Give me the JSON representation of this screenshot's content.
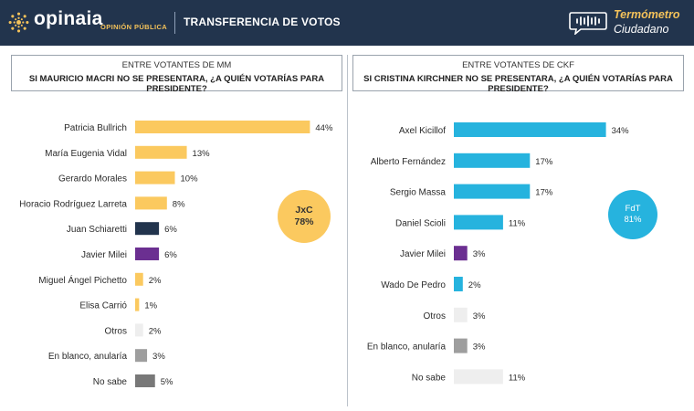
{
  "header": {
    "brand": "opinaia",
    "brand_sub": "OPINIÓN PÚBLICA",
    "title": "TRANSFERENCIA DE VOTOS",
    "product_line1": "Termómetro",
    "product_line2": "Ciudadano"
  },
  "colors": {
    "header_bg": "#22344d",
    "jxc": "#fbc95f",
    "fdt": "#26b3de",
    "schiaretti": "#22344d",
    "milei": "#6b2f91",
    "otros": "#eeeeee",
    "blanco": "#9e9e9e",
    "nosabe": "#787878"
  },
  "chart_data": [
    {
      "type": "bar",
      "orientation": "horizontal",
      "title": "ENTRE VOTANTES DE MM",
      "subtitle": "SI MAURICIO MACRI NO SE PRESENTARA, ¿A QUIÉN VOTARÍAS PARA PRESIDENTE?",
      "categories": [
        "Patricia Bullrich",
        "María Eugenia Vidal",
        "Gerardo Morales",
        "Horacio Rodríguez Larreta",
        "Juan Schiaretti",
        "Javier Milei",
        "Miguel Ángel Pichetto",
        "Elisa Carrió",
        "Otros",
        "En blanco, anularía",
        "No sabe"
      ],
      "values": [
        44,
        13,
        10,
        8,
        6,
        6,
        2,
        1,
        2,
        3,
        5
      ],
      "labels": [
        "44%",
        "13%",
        "10%",
        "8%",
        "6%",
        "6%",
        "2%",
        "1%",
        "2%",
        "3%",
        "5%"
      ],
      "bar_colors": [
        "#fbc95f",
        "#fbc95f",
        "#fbc95f",
        "#fbc95f",
        "#22344d",
        "#6b2f91",
        "#fbc95f",
        "#fbc95f",
        "#eeeeee",
        "#9e9e9e",
        "#787878"
      ],
      "annotation": {
        "line1": "JxC",
        "line2": "78%"
      }
    },
    {
      "type": "bar",
      "orientation": "horizontal",
      "title": "ENTRE VOTANTES DE CKF",
      "subtitle": "SI CRISTINA KIRCHNER NO SE PRESENTARA, ¿A QUIÉN VOTARÍAS PARA PRESIDENTE?",
      "categories": [
        "Axel Kicillof",
        "Alberto Fernández",
        "Sergio Massa",
        "Daniel Scioli",
        "Javier Milei",
        "Wado De Pedro",
        "Otros",
        "En blanco, anularía",
        "No sabe"
      ],
      "values": [
        34,
        17,
        17,
        11,
        3,
        2,
        3,
        3,
        11
      ],
      "labels": [
        "34%",
        "17%",
        "17%",
        "11%",
        "3%",
        "2%",
        "3%",
        "3%",
        "11%"
      ],
      "bar_colors": [
        "#26b3de",
        "#26b3de",
        "#26b3de",
        "#26b3de",
        "#6b2f91",
        "#26b3de",
        "#eeeeee",
        "#9e9e9e",
        "#eeeeee"
      ],
      "annotation": {
        "line1": "FdT",
        "line2": "81%"
      }
    }
  ]
}
